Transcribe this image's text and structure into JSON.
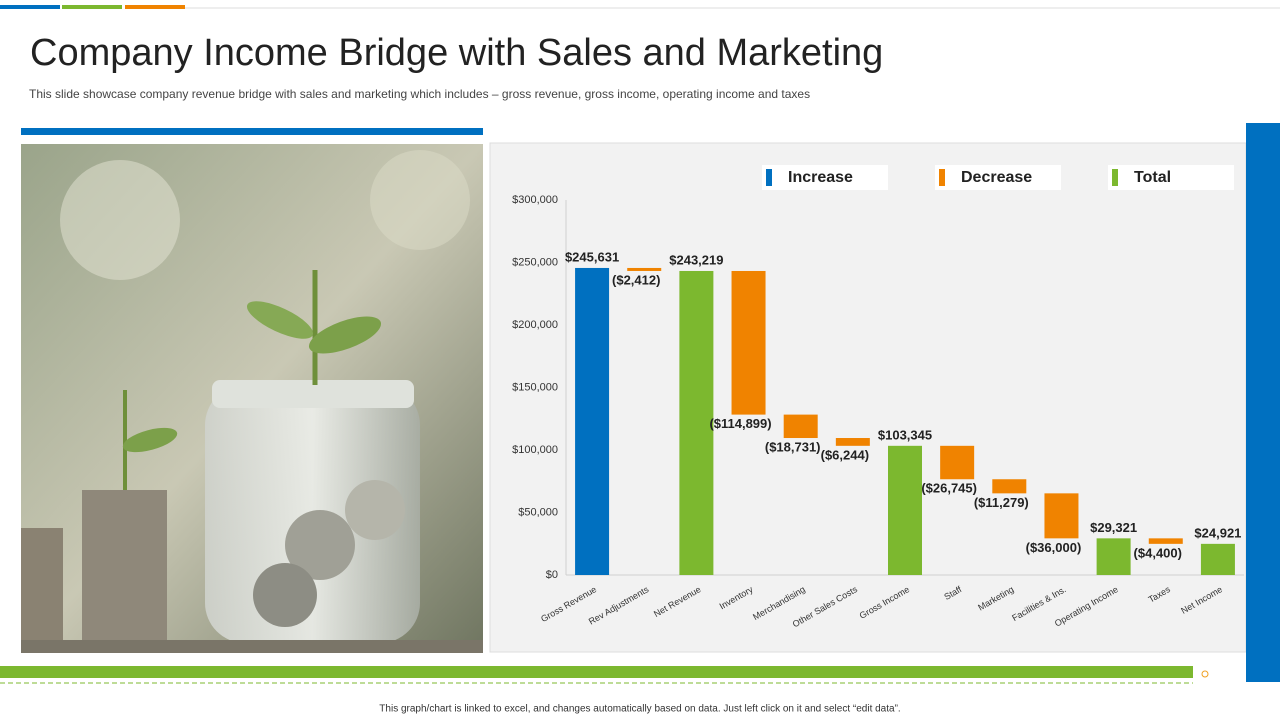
{
  "title": "Company Income Bridge with Sales and Marketing",
  "subtitle": "This slide showcase company revenue  bridge with sales and marketing which includes – gross revenue,  gross income, operating income and taxes",
  "footer": "This graph/chart is linked to excel, and changes automatically based on data. Just left click on it and select “edit data”.",
  "chart_data": {
    "type": "waterfall",
    "categories": [
      "Gross Revenue",
      "Rev Adjustments",
      "Net Revenue",
      "Inventory",
      "Merchandising",
      "Other Sales Costs",
      "Gross Income",
      "Staff",
      "Marketing",
      "Facilities & Ins.",
      "Operating Income",
      "Taxes",
      "Net Income"
    ],
    "values": [
      245631,
      -2412,
      243219,
      -114899,
      -18731,
      -6244,
      103345,
      -26745,
      -11279,
      -36000,
      29321,
      -4400,
      24921
    ],
    "value_labels": [
      "$245,631",
      "($2,412)",
      "$243,219",
      "($114,899)",
      "($18,731)",
      "($6,244)",
      "$103,345",
      "($26,745)",
      "($11,279)",
      "($36,000)",
      "$29,321",
      "($4,400)",
      "$24,921"
    ],
    "bar_kinds": [
      "Increase",
      "Decrease",
      "Total",
      "Decrease",
      "Decrease",
      "Decrease",
      "Total",
      "Decrease",
      "Decrease",
      "Decrease",
      "Total",
      "Decrease",
      "Total"
    ],
    "series": [
      {
        "name": "Increase",
        "color": "#0070c0"
      },
      {
        "name": "Decrease",
        "color": "#f08300"
      },
      {
        "name": "Total",
        "color": "#7cb82f"
      }
    ],
    "ylim": [
      0,
      300000
    ],
    "yticks": [
      {
        "value": 0,
        "label": "$0"
      },
      {
        "value": 50000,
        "label": "$50,000"
      },
      {
        "value": 100000,
        "label": "$100,000"
      },
      {
        "value": 150000,
        "label": "$150,000"
      },
      {
        "value": 200000,
        "label": "$200,000"
      },
      {
        "value": 250000,
        "label": "$250,000"
      },
      {
        "value": 300000,
        "label": "$300,000"
      }
    ],
    "grid": false
  }
}
